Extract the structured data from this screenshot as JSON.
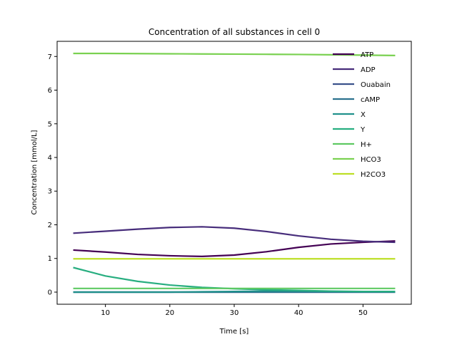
{
  "chart_data": {
    "type": "line",
    "title": "Concentration of all substances in cell 0",
    "xlabel": "Time [s]",
    "ylabel": "Concentration [mmol/L]",
    "xlim": [
      2.5,
      57.5
    ],
    "ylim": [
      -0.36,
      7.45
    ],
    "xticks": [
      10,
      20,
      30,
      40,
      50
    ],
    "yticks": [
      0,
      1,
      2,
      3,
      4,
      5,
      6,
      7
    ],
    "grid": false,
    "legend_position": "upper-right",
    "x": [
      5,
      10,
      15,
      20,
      25,
      30,
      35,
      40,
      45,
      50,
      55
    ],
    "series": [
      {
        "name": "ATP",
        "color": "#440154",
        "values": [
          1.25,
          1.19,
          1.12,
          1.08,
          1.06,
          1.1,
          1.2,
          1.33,
          1.43,
          1.48,
          1.52
        ]
      },
      {
        "name": "ADP",
        "color": "#472d7b",
        "values": [
          1.75,
          1.81,
          1.87,
          1.92,
          1.94,
          1.9,
          1.8,
          1.67,
          1.57,
          1.51,
          1.48
        ]
      },
      {
        "name": "Ouabain",
        "color": "#3b528b",
        "values": [
          0,
          0,
          0,
          0,
          0,
          0,
          0,
          0,
          0,
          0,
          0
        ]
      },
      {
        "name": "cAMP",
        "color": "#2c728e",
        "values": [
          0,
          0,
          0,
          0,
          0,
          0,
          0,
          0,
          0,
          0,
          0
        ]
      },
      {
        "name": "X",
        "color": "#21918c",
        "values": [
          0,
          0,
          0,
          0,
          0.01,
          0.02,
          0.03,
          0.03,
          0.02,
          0.01,
          0.01
        ]
      },
      {
        "name": "Y",
        "color": "#28ae80",
        "values": [
          0.73,
          0.48,
          0.32,
          0.21,
          0.14,
          0.1,
          0.07,
          0.05,
          0.03,
          0.02,
          0.02
        ]
      },
      {
        "name": "H+",
        "color": "#5ec962",
        "values": [
          0.11,
          0.11,
          0.11,
          0.11,
          0.11,
          0.11,
          0.11,
          0.11,
          0.11,
          0.11,
          0.11
        ]
      },
      {
        "name": "HCO3",
        "color": "#7ad151",
        "values": [
          7.09,
          7.09,
          7.085,
          7.08,
          7.075,
          7.07,
          7.065,
          7.06,
          7.05,
          7.04,
          7.03
        ]
      },
      {
        "name": "H2CO3",
        "color": "#bddf26",
        "values": [
          0.99,
          0.99,
          0.99,
          0.99,
          0.99,
          0.99,
          0.99,
          0.99,
          0.99,
          0.99,
          0.99
        ]
      }
    ]
  }
}
